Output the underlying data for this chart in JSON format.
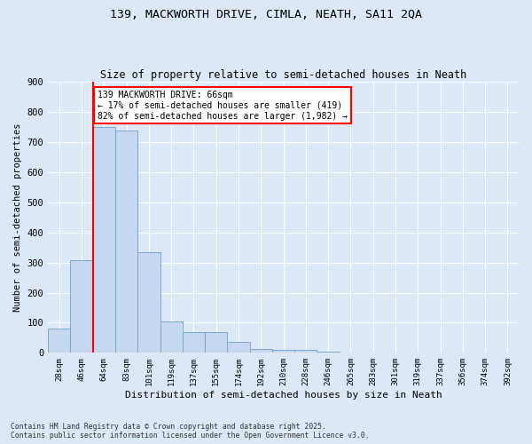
{
  "title1": "139, MACKWORTH DRIVE, CIMLA, NEATH, SA11 2QA",
  "title2": "Size of property relative to semi-detached houses in Neath",
  "xlabel": "Distribution of semi-detached houses by size in Neath",
  "ylabel": "Number of semi-detached properties",
  "categories": [
    "28sqm",
    "46sqm",
    "64sqm",
    "83sqm",
    "101sqm",
    "119sqm",
    "137sqm",
    "155sqm",
    "174sqm",
    "192sqm",
    "210sqm",
    "228sqm",
    "246sqm",
    "265sqm",
    "283sqm",
    "301sqm",
    "319sqm",
    "337sqm",
    "356sqm",
    "374sqm",
    "392sqm"
  ],
  "values": [
    80,
    308,
    750,
    738,
    335,
    105,
    68,
    68,
    35,
    12,
    10,
    10,
    5,
    0,
    0,
    0,
    0,
    0,
    0,
    0,
    0
  ],
  "bar_color": "#c5d8f0",
  "bar_edge_color": "#7aaad0",
  "vline_x_index": 2,
  "vline_color": "red",
  "annotation_text": "139 MACKWORTH DRIVE: 66sqm\n← 17% of semi-detached houses are smaller (419)\n82% of semi-detached houses are larger (1,982) →",
  "annotation_box_color": "white",
  "annotation_box_edge": "red",
  "ylim": [
    0,
    900
  ],
  "yticks": [
    0,
    100,
    200,
    300,
    400,
    500,
    600,
    700,
    800,
    900
  ],
  "footer": "Contains HM Land Registry data © Crown copyright and database right 2025.\nContains public sector information licensed under the Open Government Licence v3.0.",
  "bg_color": "#dce8f5",
  "plot_bg_color": "#dce8f5"
}
